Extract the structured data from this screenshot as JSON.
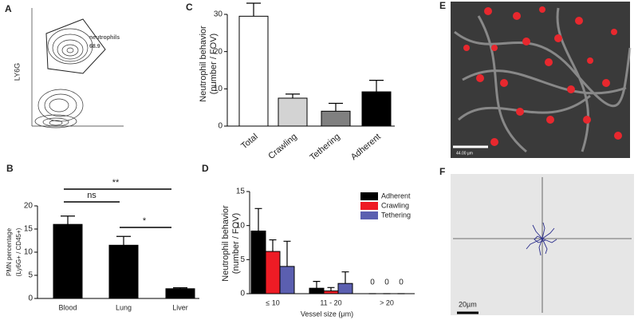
{
  "chart_data": [
    {
      "type": "contour",
      "panel": "A",
      "ylabel": "LY6G",
      "gate_label": "neutrophils",
      "gate_value": 68.9
    },
    {
      "type": "bar",
      "panel": "B",
      "ylabel": [
        "PMN percentage",
        "(Ly6G+ / CD45+)"
      ],
      "categories": [
        "Blood",
        "Lung",
        "Liver"
      ],
      "values": [
        16,
        11.5,
        2.1
      ],
      "errors": [
        1.8,
        1.9,
        0.2
      ],
      "color": "#000000",
      "ylim": [
        0,
        20
      ],
      "yticks": [
        0,
        5,
        10,
        15,
        20
      ],
      "annotations": [
        "**",
        "ns",
        "*"
      ]
    },
    {
      "type": "bar",
      "panel": "C",
      "ylabel": [
        "Neutrophil behavior",
        "(number / FOV)"
      ],
      "categories": [
        "Total",
        "Crawling",
        "Tethering",
        "Adherent"
      ],
      "values": [
        29.5,
        7.5,
        4,
        9.2
      ],
      "errors": [
        3.5,
        1.1,
        2.1,
        3.1
      ],
      "colors": [
        "#ffffff",
        "#d3d3d3",
        "#808080",
        "#000000"
      ],
      "ylim": [
        0,
        33
      ],
      "yticks": [
        0,
        10,
        20,
        30
      ]
    },
    {
      "type": "grouped_bar",
      "panel": "D",
      "ylabel": [
        "Neutrophil behavior",
        "(number / FOV)"
      ],
      "xlabel": "Vessel size (μm)",
      "categories": [
        "≤ 10",
        "11 - 20",
        "> 20"
      ],
      "series": [
        {
          "name": "Adherent",
          "color": "#000000",
          "values": [
            9.2,
            0.8,
            0
          ],
          "errors": [
            3.3,
            1.0,
            0
          ],
          "value_labels": [
            null,
            null,
            "0"
          ]
        },
        {
          "name": "Crawling",
          "color": "#ee1c25",
          "values": [
            6.2,
            0.4,
            0
          ],
          "errors": [
            1.7,
            0.5,
            0
          ],
          "value_labels": [
            null,
            null,
            "0"
          ]
        },
        {
          "name": "Tethering",
          "color": "#5b5fb0",
          "values": [
            4,
            1.5,
            0
          ],
          "errors": [
            3.7,
            1.7,
            0
          ],
          "value_labels": [
            null,
            null,
            "0"
          ]
        }
      ],
      "ylim": [
        0,
        15
      ],
      "yticks": [
        0,
        5,
        10,
        15
      ]
    }
  ],
  "images": [
    {
      "panel": "E",
      "scale_bar": "44.00 µm"
    },
    {
      "panel": "F",
      "scale_bar": "20µm"
    }
  ]
}
